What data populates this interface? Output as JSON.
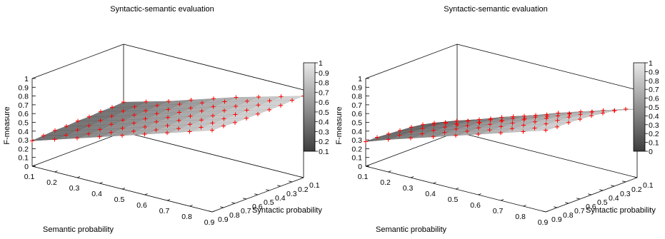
{
  "chart_data": [
    {
      "type": "surface",
      "title": "Syntactic-semantic evaluation",
      "xlabel": "Semantic probability",
      "ylabel": "Syntactic probability",
      "zlabel": "F-measure",
      "x_ticks": [
        "0.1",
        "0.2",
        "0.3",
        "0.4",
        "0.5",
        "0.6",
        "0.7",
        "0.8",
        "0.9"
      ],
      "y_ticks": [
        "0.1",
        "0.2",
        "0.3",
        "0.4",
        "0.5",
        "0.6",
        "0.7",
        "0.8",
        "0.9"
      ],
      "z_ticks": [
        "0",
        "0.1",
        "0.2",
        "0.3",
        "0.4",
        "0.5",
        "0.6",
        "0.7",
        "0.8",
        "0.9",
        "1"
      ],
      "zlim": [
        0,
        1
      ],
      "colorbar_ticks": [
        "0.1",
        "0.2",
        "0.3",
        "0.4",
        "0.5",
        "0.6",
        "0.7",
        "0.8",
        "0.9",
        "1"
      ],
      "colorbar_range": [
        0.1,
        1
      ],
      "marker_color": "#ff0000",
      "x": [
        0.1,
        0.2,
        0.3,
        0.4,
        0.5,
        0.6,
        0.7,
        0.8,
        0.9
      ],
      "y": [
        0.1,
        0.2,
        0.3,
        0.4,
        0.5,
        0.6,
        0.7,
        0.8,
        0.9
      ],
      "z": [
        [
          0.29,
          0.3,
          0.31,
          0.31,
          0.32,
          0.32,
          0.33,
          0.33,
          0.34
        ],
        [
          0.37,
          0.37,
          0.38,
          0.38,
          0.39,
          0.39,
          0.4,
          0.4,
          0.41
        ],
        [
          0.45,
          0.45,
          0.45,
          0.46,
          0.46,
          0.47,
          0.47,
          0.48,
          0.48
        ],
        [
          0.53,
          0.53,
          0.53,
          0.54,
          0.54,
          0.55,
          0.55,
          0.56,
          0.56
        ],
        [
          0.61,
          0.61,
          0.61,
          0.62,
          0.62,
          0.63,
          0.63,
          0.64,
          0.64
        ],
        [
          0.69,
          0.69,
          0.69,
          0.7,
          0.7,
          0.71,
          0.71,
          0.72,
          0.72
        ],
        [
          0.77,
          0.77,
          0.77,
          0.77,
          0.77,
          0.78,
          0.78,
          0.79,
          0.79
        ],
        [
          0.85,
          0.85,
          0.85,
          0.85,
          0.85,
          0.85,
          0.86,
          0.86,
          0.86
        ],
        [
          0.93,
          0.93,
          0.92,
          0.92,
          0.92,
          0.92,
          0.92,
          0.93,
          0.93
        ]
      ]
    },
    {
      "type": "surface",
      "title": "Syntactic-semantic evaluation",
      "xlabel": "Semantic probability",
      "ylabel": "Syntactic probability",
      "zlabel": "F-measure",
      "x_ticks": [
        "0.1",
        "0.2",
        "0.3",
        "0.4",
        "0.5",
        "0.6",
        "0.7",
        "0.8",
        "0.9"
      ],
      "y_ticks": [
        "0.1",
        "0.2",
        "0.3",
        "0.4",
        "0.5",
        "0.6",
        "0.7",
        "0.8",
        "0.9"
      ],
      "z_ticks": [
        "0",
        "0.1",
        "0.2",
        "0.3",
        "0.4",
        "0.5",
        "0.6",
        "0.7",
        "0.8",
        "0.9",
        "1"
      ],
      "zlim": [
        0,
        1
      ],
      "colorbar_ticks": [
        "0",
        "0.1",
        "0.2",
        "0.3",
        "0.4",
        "0.5",
        "0.6",
        "0.7",
        "0.8",
        "0.9",
        "1"
      ],
      "colorbar_range": [
        0,
        1
      ],
      "marker_color": "#ff0000",
      "x": [
        0.1,
        0.2,
        0.3,
        0.4,
        0.5,
        0.6,
        0.7,
        0.8,
        0.9
      ],
      "y": [
        0.1,
        0.2,
        0.3,
        0.4,
        0.5,
        0.6,
        0.7,
        0.8,
        0.9
      ],
      "z": [
        [
          0.28,
          0.28,
          0.27,
          0.26,
          0.25,
          0.23,
          0.2,
          0.15,
          0.08
        ],
        [
          0.37,
          0.37,
          0.36,
          0.35,
          0.34,
          0.32,
          0.29,
          0.24,
          0.17
        ],
        [
          0.45,
          0.45,
          0.44,
          0.43,
          0.42,
          0.4,
          0.37,
          0.33,
          0.26
        ],
        [
          0.53,
          0.53,
          0.52,
          0.51,
          0.5,
          0.48,
          0.46,
          0.42,
          0.35
        ],
        [
          0.61,
          0.61,
          0.6,
          0.59,
          0.58,
          0.56,
          0.54,
          0.5,
          0.44
        ],
        [
          0.69,
          0.69,
          0.68,
          0.67,
          0.66,
          0.64,
          0.62,
          0.59,
          0.53
        ],
        [
          0.77,
          0.77,
          0.76,
          0.75,
          0.74,
          0.72,
          0.7,
          0.67,
          0.62
        ],
        [
          0.85,
          0.84,
          0.84,
          0.83,
          0.82,
          0.8,
          0.78,
          0.75,
          0.7
        ],
        [
          0.93,
          0.92,
          0.92,
          0.91,
          0.9,
          0.88,
          0.86,
          0.83,
          0.78
        ]
      ]
    }
  ]
}
